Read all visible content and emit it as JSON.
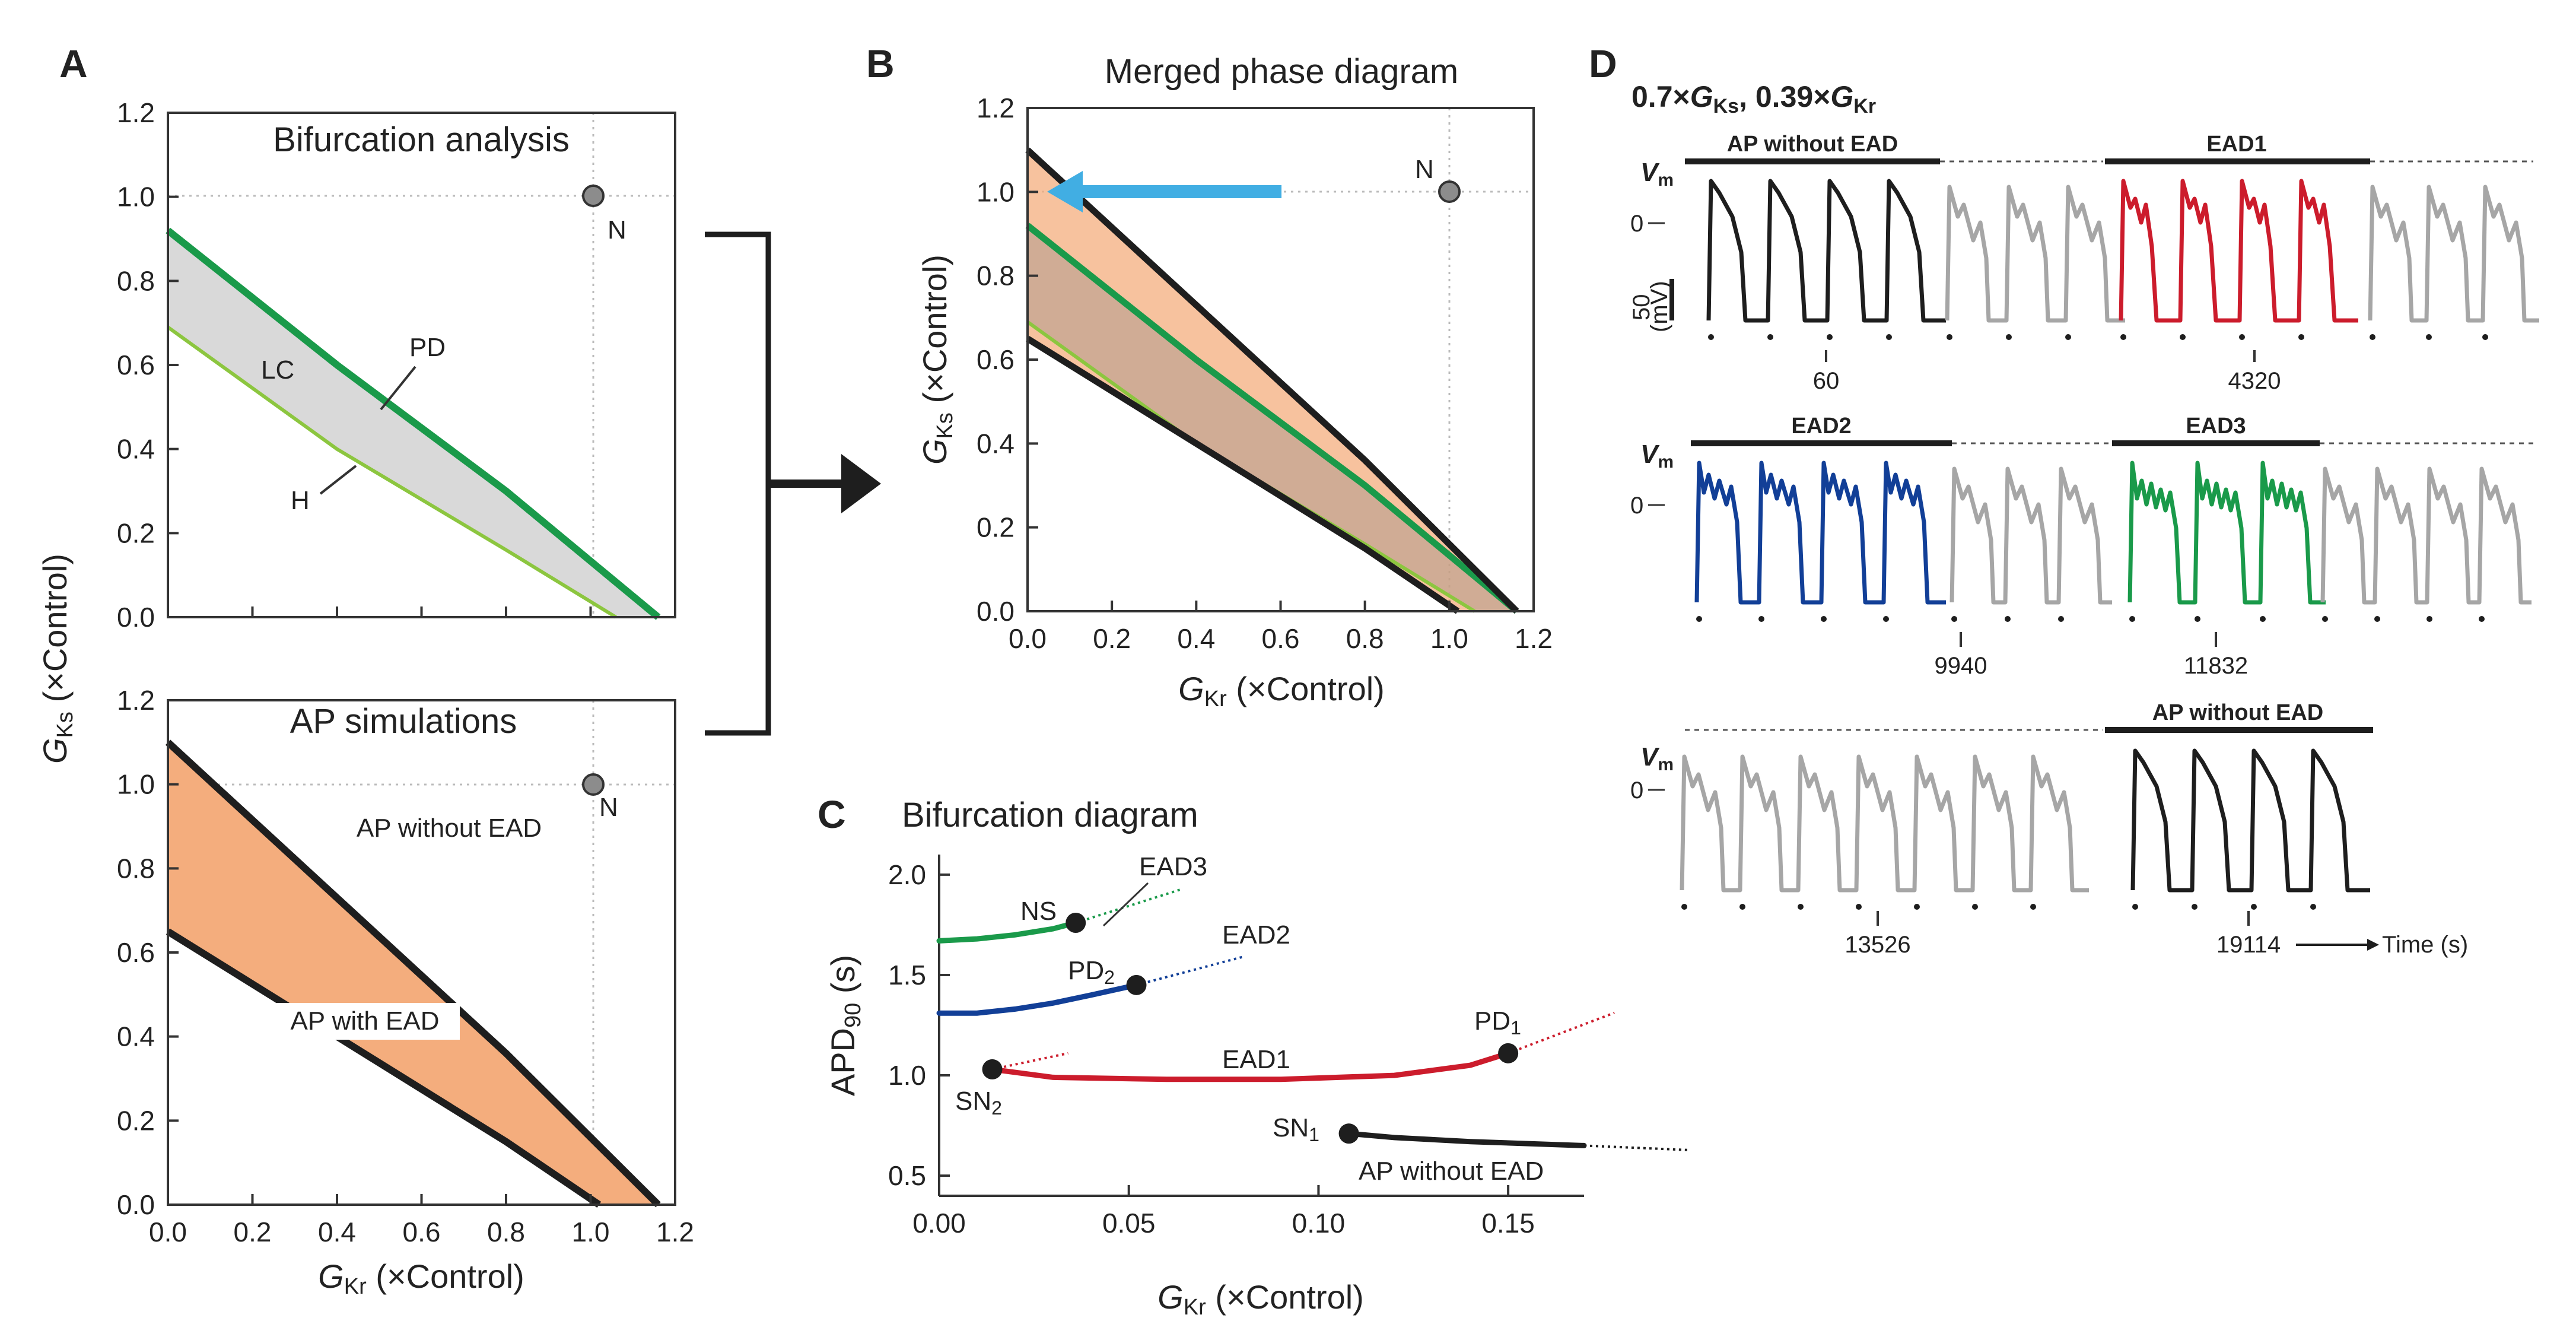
{
  "panel_labels": {
    "A": "A",
    "B": "B",
    "C": "C",
    "D": "D"
  },
  "chart_data": [
    {
      "id": "A1",
      "type": "area",
      "title": "Bifurcation analysis",
      "xlim": [
        0,
        1.2
      ],
      "ylim": [
        0,
        1.2
      ],
      "xticks": [
        0,
        0.2,
        0.4,
        0.6,
        0.8,
        1.0,
        1.2
      ],
      "yticks": [
        "0.0",
        "0.2",
        "0.4",
        "0.6",
        "0.8",
        "1.0",
        "1.2"
      ],
      "ylabel": "G_Ks (×Control)",
      "point": {
        "label": "N",
        "x": 1.0,
        "y": 1.0
      },
      "boundaries": [
        {
          "name": "PD",
          "color": "#1a9a4a",
          "points": [
            [
              0,
              0.92
            ],
            [
              0.4,
              0.6
            ],
            [
              0.8,
              0.3
            ],
            [
              1.16,
              0.0
            ]
          ]
        },
        {
          "name": "H",
          "color": "#8cc63f",
          "points": [
            [
              0,
              0.69
            ],
            [
              0.4,
              0.4
            ],
            [
              0.8,
              0.16
            ],
            [
              1.06,
              0.0
            ]
          ]
        }
      ],
      "region_labels": [
        "LC",
        "PD",
        "H"
      ]
    },
    {
      "id": "A2",
      "type": "area",
      "title": "AP simulations",
      "xlim": [
        0,
        1.2
      ],
      "ylim": [
        0,
        1.2
      ],
      "xticks": [
        "0.0",
        "0.2",
        "0.4",
        "0.6",
        "0.8",
        "1.0",
        "1.2"
      ],
      "yticks": [
        "0.0",
        "0.2",
        "0.4",
        "0.6",
        "0.8",
        "1.0",
        "1.2"
      ],
      "xlabel": "G_Kr (×Control)",
      "point": {
        "label": "N",
        "x": 1.0,
        "y": 1.0
      },
      "boundaries": [
        {
          "name": "upper",
          "points": [
            [
              0,
              1.1
            ],
            [
              0.4,
              0.73
            ],
            [
              0.8,
              0.36
            ],
            [
              1.16,
              0.0
            ]
          ]
        },
        {
          "name": "lower",
          "points": [
            [
              0,
              0.65
            ],
            [
              0.4,
              0.4
            ],
            [
              0.8,
              0.15
            ],
            [
              1.02,
              0.0
            ]
          ]
        }
      ],
      "region_labels": [
        "AP without EAD",
        "AP with EAD"
      ]
    },
    {
      "id": "B",
      "type": "area",
      "title": "Merged phase diagram",
      "xlim": [
        0,
        1.2
      ],
      "ylim": [
        0,
        1.2
      ],
      "xticks": [
        "0.0",
        "0.2",
        "0.4",
        "0.6",
        "0.8",
        "1.0",
        "1.2"
      ],
      "yticks": [
        "0.0",
        "0.2",
        "0.4",
        "0.6",
        "0.8",
        "1.0",
        "1.2"
      ],
      "xlabel": "G_Kr (×Control)",
      "ylabel": "G_Ks (×Control)",
      "point": {
        "label": "N",
        "x": 1.0,
        "y": 1.0
      },
      "arrow": {
        "from": [
          0.6,
          1.0
        ],
        "to": [
          0.0,
          1.0
        ],
        "color": "#41aee3"
      }
    },
    {
      "id": "C",
      "type": "line",
      "title": "Bifurcation diagram",
      "xlim": [
        0,
        0.17
      ],
      "ylim": [
        0.4,
        2.1
      ],
      "xticks": [
        "0.00",
        "0.05",
        "0.10",
        "0.15"
      ],
      "yticks": [
        "0.5",
        "1.0",
        "1.5",
        "2.0"
      ],
      "xlabel": "G_Kr (×Control)",
      "ylabel": "APD90 (s)",
      "series": [
        {
          "name": "EAD3",
          "color": "#1a9a4a",
          "x": [
            0.0,
            0.01,
            0.02,
            0.03,
            0.036
          ],
          "y": [
            1.67,
            1.68,
            1.7,
            1.73,
            1.76
          ]
        },
        {
          "name": "EAD2",
          "color": "#123f97",
          "x": [
            0.0,
            0.01,
            0.02,
            0.03,
            0.04,
            0.052
          ],
          "y": [
            1.31,
            1.31,
            1.33,
            1.36,
            1.4,
            1.45
          ]
        },
        {
          "name": "EAD1",
          "color": "#cc1c2c",
          "x": [
            0.014,
            0.03,
            0.06,
            0.09,
            0.12,
            0.14,
            0.15
          ],
          "y": [
            1.03,
            0.99,
            0.98,
            0.98,
            1.0,
            1.05,
            1.11
          ]
        },
        {
          "name": "AP without EAD",
          "color": "#1e1e1e",
          "x": [
            0.108,
            0.12,
            0.14,
            0.17
          ],
          "y": [
            0.71,
            0.69,
            0.67,
            0.65
          ]
        }
      ],
      "points": [
        {
          "label": "NS",
          "x": 0.036,
          "y": 1.76
        },
        {
          "label": "PD2",
          "x": 0.052,
          "y": 1.45
        },
        {
          "label": "SN2",
          "x": 0.014,
          "y": 1.03
        },
        {
          "label": "PD1",
          "x": 0.15,
          "y": 1.11
        },
        {
          "label": "SN1",
          "x": 0.108,
          "y": 0.71
        }
      ]
    }
  ],
  "labels": {
    "A1": {
      "title": "Bifurcation analysis",
      "lc": "LC",
      "pd": "PD",
      "h": "H",
      "n": "N"
    },
    "A2": {
      "title": "AP simulations",
      "no_ead": "AP without EAD",
      "with_ead": "AP with EAD",
      "n": "N"
    },
    "A_ylabel_main": "G",
    "A_ylabel_sub": "Ks",
    "A_ylabel_rest": " (×Control)",
    "A_xlabel_main": "G",
    "A_xlabel_sub": "Kr",
    "A_xlabel_rest": " (×Control)",
    "B": {
      "title": "Merged phase diagram",
      "n": "N",
      "x_main": "G",
      "x_sub": "Kr",
      "x_rest": " (×Control)",
      "y_main": "G",
      "y_sub": "Ks",
      "y_rest": " (×Control)"
    },
    "C": {
      "title": "Bifurcation diagram",
      "x_main": "G",
      "x_sub": "Kr",
      "x_rest": " (×Control)",
      "y_main": "APD",
      "y_sub": "90",
      "y_rest": " (s)",
      "ns": "NS",
      "ead3": "EAD3",
      "ead2": "EAD2",
      "pd2": "PD",
      "pd2_sub": "2",
      "ead1": "EAD1",
      "sn2": "SN",
      "sn2_sub": "2",
      "pd1": "PD",
      "pd1_sub": "1",
      "sn1": "SN",
      "sn1_sub": "1",
      "no_ead": "AP without EAD"
    },
    "D": {
      "header_pre": "0.7×",
      "header_g1": "G",
      "header_s1": "Ks",
      "header_mid": ", 0.39×",
      "header_g2": "G",
      "header_s2": "Kr",
      "vm": "V",
      "vm_sub": "m",
      "zero": "0",
      "scale": "50",
      "scale_unit": "(mV)",
      "row1_bar1": "AP without EAD",
      "row1_bar2": "EAD1",
      "row2_bar1": "EAD2",
      "row2_bar2": "EAD3",
      "row3_bar2": "AP without EAD",
      "t60": "60",
      "t4320": "4320",
      "t9940": "9940",
      "t11832": "11832",
      "t13526": "13526",
      "t19114": "19114",
      "time_label": "Time (s)"
    }
  },
  "colors": {
    "green": "#1a9a4a",
    "lightgreen": "#8cc63f",
    "gray": "#d9d9d9",
    "orange": "#f4ad7d",
    "blue": "#41aee3",
    "red": "#cc1c2c",
    "navy": "#123f97",
    "trace_gray": "#a6a6a6",
    "dark": "#1e1e1e"
  }
}
